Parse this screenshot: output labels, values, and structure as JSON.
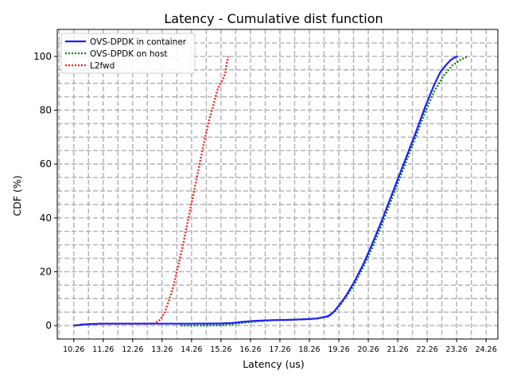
{
  "chart_data": {
    "type": "line",
    "title": "Latency - Cumulative dist function",
    "xlabel": "Latency (us)",
    "ylabel": "CDF (%)",
    "xlim": [
      9.7,
      24.66
    ],
    "ylim": [
      -5,
      110
    ],
    "x_ticks": [
      "10.26",
      "11.26",
      "12.26",
      "13.26",
      "14.26",
      "15.26",
      "16.26",
      "17.26",
      "18.26",
      "19.26",
      "20.26",
      "21.26",
      "22.26",
      "23.26",
      "24.26"
    ],
    "y_ticks": [
      "0",
      "20",
      "40",
      "60",
      "80",
      "100"
    ],
    "grid": true,
    "legend_position": "top-left",
    "series": [
      {
        "name": "OVS-DPDK in container",
        "color": "#1f1fff",
        "style": "solid",
        "x": [
          10.26,
          10.4,
          10.6,
          10.9,
          11.2,
          11.6,
          12.2,
          13.26,
          14.26,
          15.26,
          15.6,
          16.0,
          16.5,
          17.0,
          17.5,
          18.0,
          18.5,
          18.9,
          19.1,
          19.3,
          19.5,
          19.8,
          20.1,
          20.4,
          20.7,
          21.0,
          21.3,
          21.6,
          21.9,
          22.2,
          22.5,
          22.7,
          22.9,
          23.05,
          23.2,
          23.3
        ],
        "y": [
          0,
          0.1,
          0.4,
          0.6,
          0.7,
          0.7,
          0.7,
          0.7,
          0.7,
          0.8,
          0.9,
          1.4,
          1.8,
          2.0,
          2.1,
          2.3,
          2.6,
          3.5,
          5.2,
          8.0,
          11.0,
          16.5,
          23.0,
          30.5,
          38.5,
          47.0,
          55.5,
          64.0,
          72.5,
          81.5,
          89.5,
          94.0,
          96.8,
          98.6,
          99.6,
          100
        ]
      },
      {
        "name": "OVS-DPDK on host",
        "color": "#008000",
        "style": "dotted",
        "x": [
          13.9,
          14.5,
          15.2,
          15.6,
          16.0,
          16.5,
          17.0,
          17.5,
          18.0,
          18.5,
          18.9,
          19.1,
          19.3,
          19.5,
          19.8,
          20.1,
          20.4,
          20.7,
          21.0,
          21.3,
          21.6,
          21.9,
          22.2,
          22.5,
          22.8,
          23.1,
          23.4,
          23.65
        ],
        "y": [
          0,
          0,
          0.1,
          0.4,
          1.0,
          1.6,
          2.0,
          2.1,
          2.3,
          2.6,
          3.3,
          5.0,
          7.5,
          10.5,
          15.5,
          22.0,
          29.0,
          37.0,
          45.5,
          54.0,
          62.5,
          71.0,
          79.5,
          87.0,
          92.5,
          96.5,
          98.8,
          100
        ]
      },
      {
        "name": "L2fwd",
        "color": "#ff1f1f",
        "style": "dotted",
        "x": [
          10.26,
          10.5,
          11.0,
          11.5,
          12.0,
          12.5,
          13.0,
          13.2,
          13.35,
          13.5,
          13.65,
          13.8,
          13.95,
          14.1,
          14.25,
          14.4,
          14.55,
          14.7,
          14.85,
          15.0,
          15.15,
          15.3,
          15.4,
          15.45,
          15.5
        ],
        "y": [
          0,
          0.4,
          0.6,
          0.7,
          0.7,
          0.7,
          0.8,
          2.2,
          5.0,
          9.5,
          15.0,
          22.0,
          29.0,
          37.0,
          45.0,
          53.0,
          61.0,
          69.0,
          76.0,
          82.0,
          88.0,
          91.0,
          93.5,
          97.0,
          100
        ]
      }
    ]
  }
}
